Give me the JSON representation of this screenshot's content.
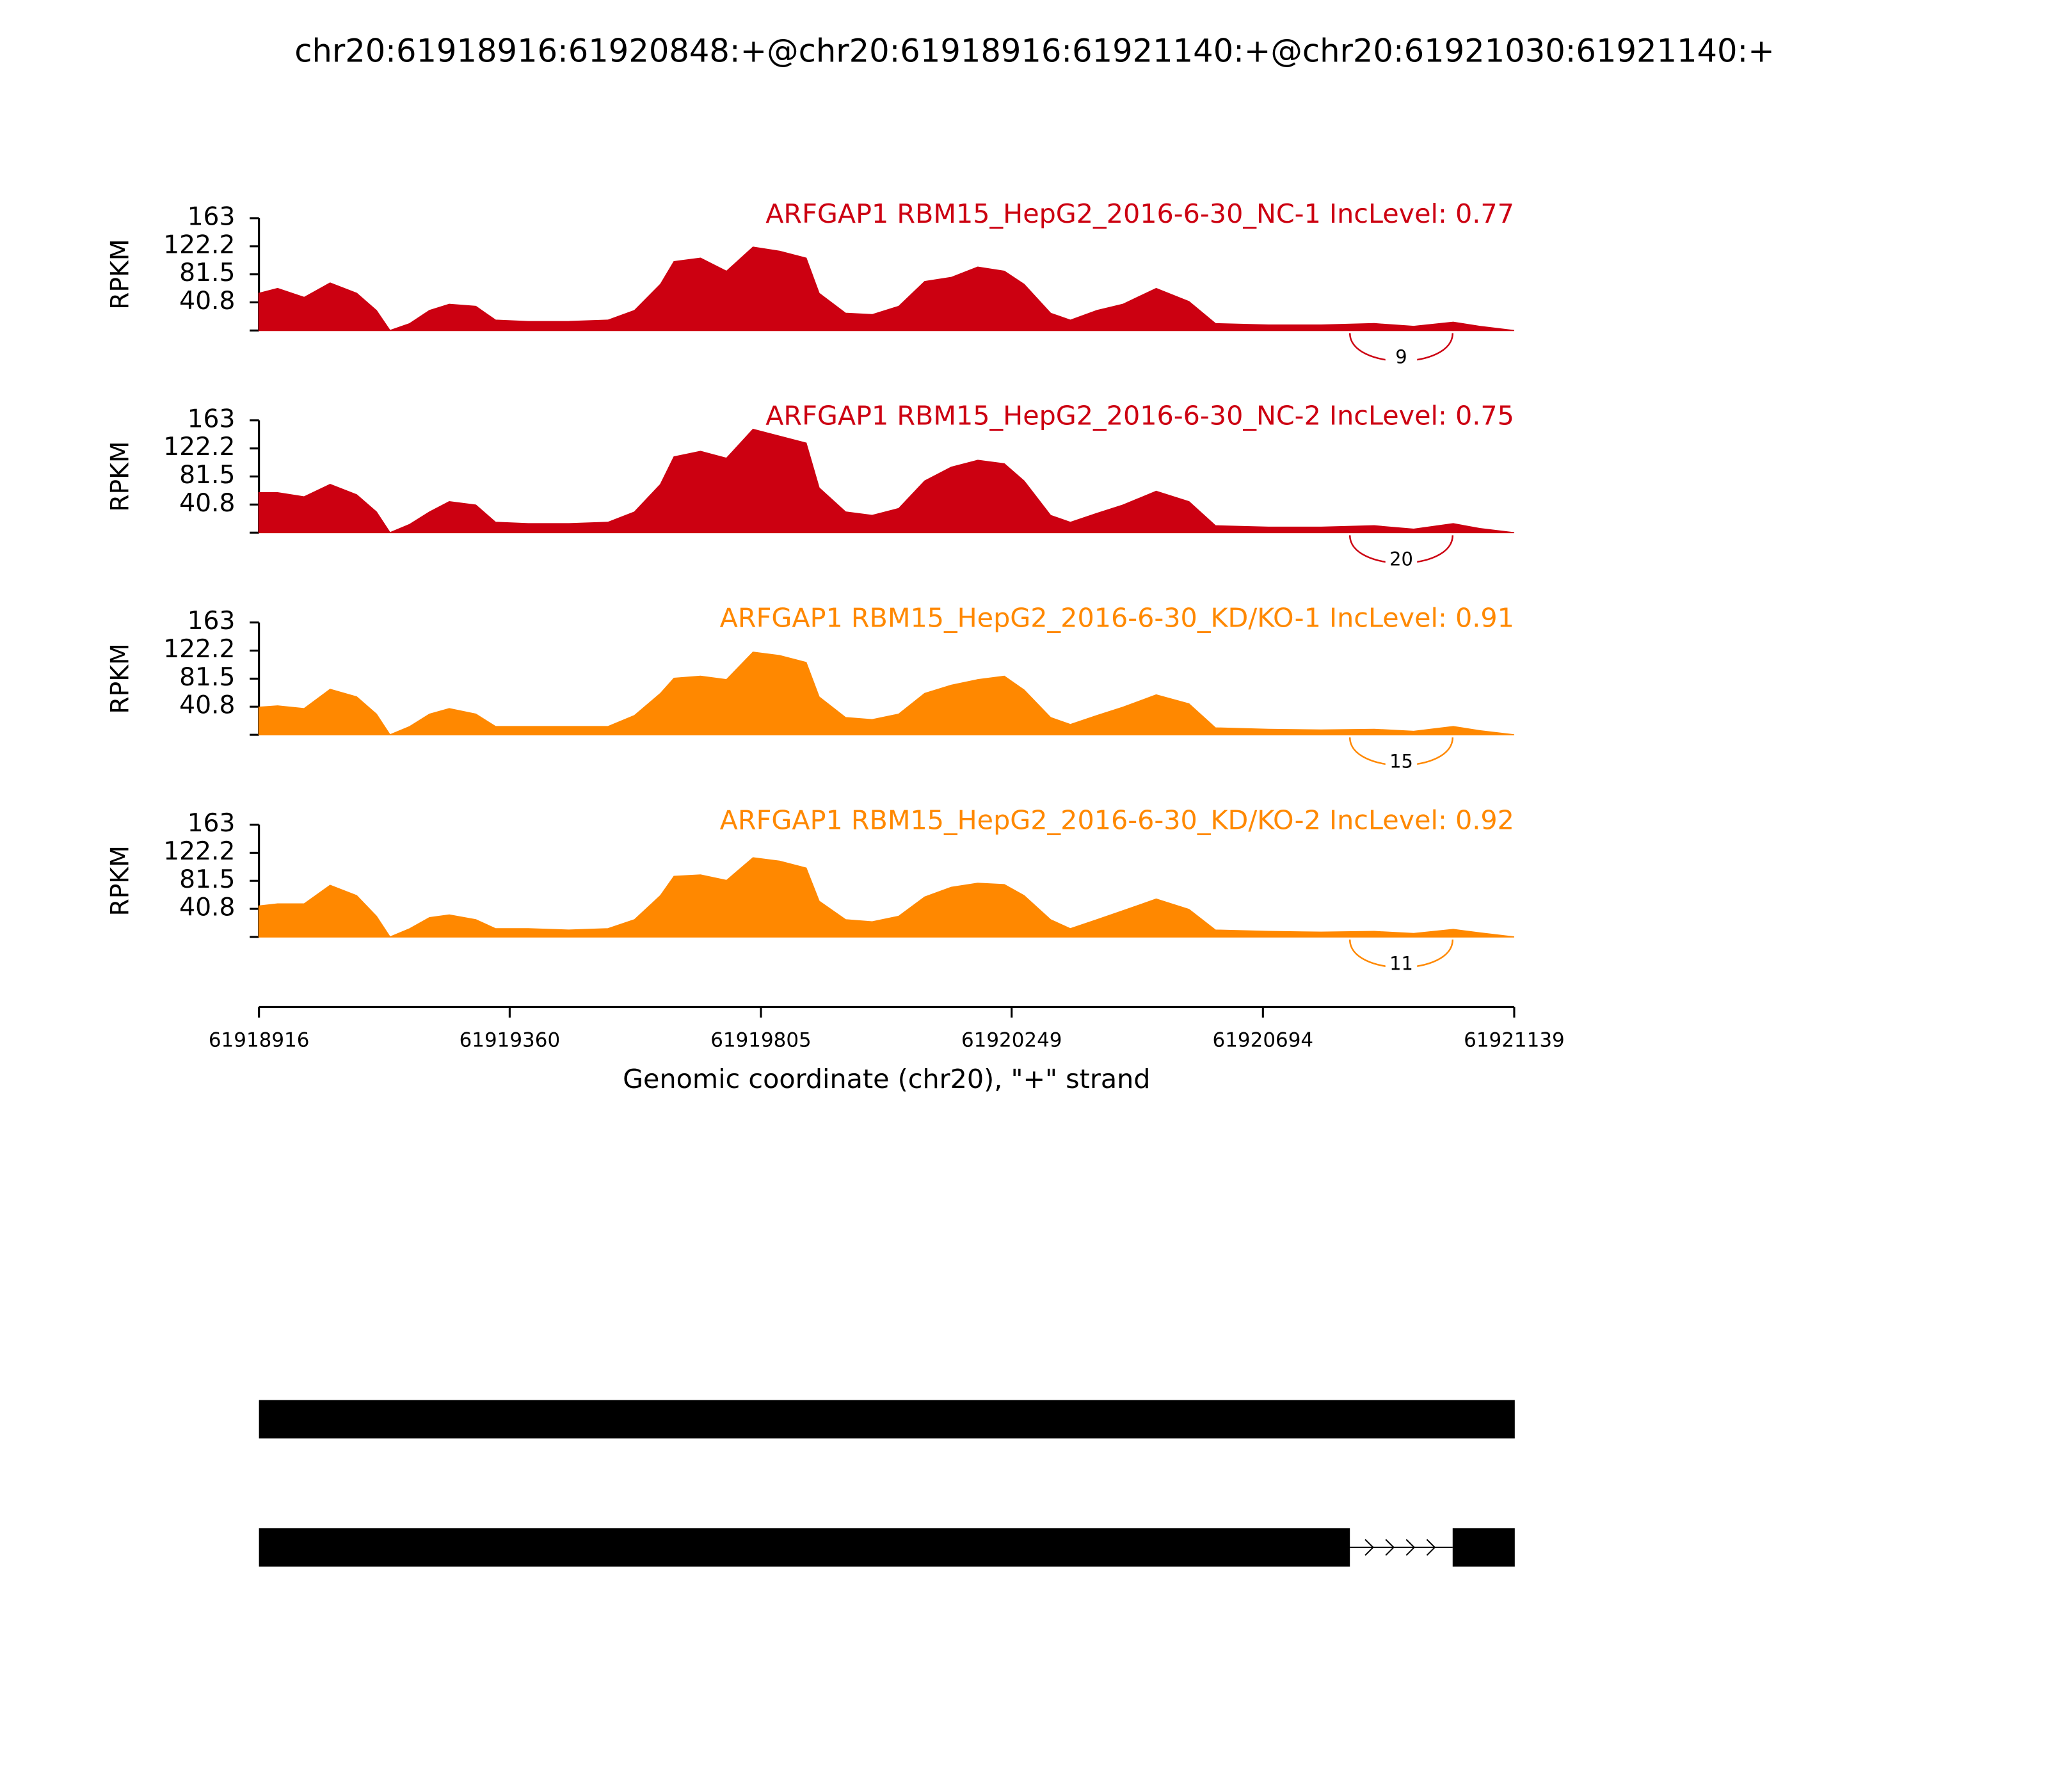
{
  "title": "chr20:61918916:61920848:+@chr20:61918916:61921140:+@chr20:61921030:61921140:+",
  "x_axis": {
    "xlim": [
      61918916,
      61921139
    ],
    "xticks": [
      61918916,
      61919360,
      61919805,
      61920249,
      61920694,
      61921139
    ],
    "label": "Genomic coordinate (chr20), \"+\" strand"
  },
  "x": [
    61918916,
    61918949,
    61918996,
    61919042,
    61919089,
    61919124,
    61919148,
    61919183,
    61919218,
    61919253,
    61919300,
    61919335,
    61919393,
    61919464,
    61919534,
    61919581,
    61919627,
    61919651,
    61919698,
    61919744,
    61919791,
    61919838,
    61919885,
    61919908,
    61919955,
    61920002,
    61920049,
    61920095,
    61920142,
    61920189,
    61920236,
    61920271,
    61920318,
    61920353,
    61920400,
    61920446,
    61920505,
    61920563,
    61920610,
    61920704,
    61920797,
    61920891,
    61920961,
    61921031,
    61921078,
    61921139
  ],
  "chart_data": [
    {
      "type": "area",
      "title": "ARFGAP1 RBM15_HepG2_2016-6-30_NC-1 IncLevel: 0.77",
      "color": "#cc0011",
      "ylabel": "RPKM",
      "ylim": [
        0,
        163
      ],
      "yticks": [
        40.8,
        81.5,
        122.2,
        163
      ],
      "values": [
        54,
        61,
        48,
        69,
        54,
        29,
        0,
        10,
        29,
        38,
        35,
        15,
        13,
        13,
        15,
        29,
        67,
        100,
        105,
        86,
        121,
        115,
        105,
        54,
        25,
        23,
        35,
        71,
        77,
        92,
        86,
        67,
        25,
        15,
        29,
        38,
        61,
        42,
        10,
        8,
        8,
        10,
        6,
        12,
        6,
        0
      ],
      "junctions": [
        {
          "start": 61920848,
          "end": 61921030,
          "count": 9
        }
      ]
    },
    {
      "type": "area",
      "title": "ARFGAP1 RBM15_HepG2_2016-6-30_NC-2 IncLevel: 0.75",
      "color": "#cc0011",
      "ylabel": "RPKM",
      "ylim": [
        0,
        163
      ],
      "yticks": [
        40.8,
        81.5,
        122.2,
        163
      ],
      "values": [
        58,
        58,
        52,
        70,
        55,
        30,
        0,
        12,
        30,
        45,
        40,
        15,
        13,
        13,
        15,
        30,
        70,
        110,
        118,
        108,
        150,
        140,
        130,
        65,
        30,
        25,
        35,
        75,
        95,
        105,
        100,
        75,
        25,
        15,
        28,
        40,
        60,
        45,
        10,
        8,
        8,
        10,
        5,
        13,
        6,
        0
      ],
      "junctions": [
        {
          "start": 61920848,
          "end": 61921030,
          "count": 20
        }
      ]
    },
    {
      "type": "area",
      "title": "ARFGAP1 RBM15_HepG2_2016-6-30_KD/KO-1 IncLevel: 0.91",
      "color": "#ff8800",
      "ylabel": "RPKM",
      "ylim": [
        0,
        163
      ],
      "yticks": [
        40.8,
        81.5,
        122.2,
        163
      ],
      "values": [
        40,
        42,
        38,
        66,
        55,
        30,
        0,
        12,
        30,
        38,
        30,
        12,
        12,
        12,
        12,
        28,
        60,
        82,
        85,
        80,
        120,
        115,
        105,
        55,
        25,
        22,
        30,
        60,
        72,
        80,
        85,
        65,
        25,
        15,
        28,
        40,
        58,
        45,
        10,
        8,
        7,
        8,
        5,
        12,
        6,
        0
      ],
      "junctions": [
        {
          "start": 61920848,
          "end": 61921030,
          "count": 15
        }
      ]
    },
    {
      "type": "area",
      "title": "ARFGAP1 RBM15_HepG2_2016-6-30_KD/KO-2 IncLevel: 0.92",
      "color": "#ff8800",
      "ylabel": "RPKM",
      "ylim": [
        0,
        163
      ],
      "yticks": [
        40.8,
        81.5,
        122.2,
        163
      ],
      "values": [
        45,
        48,
        48,
        75,
        60,
        30,
        0,
        12,
        28,
        32,
        25,
        12,
        12,
        10,
        12,
        25,
        60,
        88,
        90,
        82,
        115,
        110,
        100,
        52,
        25,
        22,
        30,
        58,
        72,
        78,
        76,
        60,
        25,
        12,
        25,
        38,
        55,
        40,
        10,
        8,
        7,
        8,
        5,
        11,
        6,
        0
      ],
      "junctions": [
        {
          "start": 61920848,
          "end": 61921030,
          "count": 11
        }
      ]
    }
  ],
  "isoforms": [
    {
      "exons": [
        [
          61918916,
          61921140
        ]
      ]
    },
    {
      "exons": [
        [
          61918916,
          61920848
        ],
        [
          61921030,
          61921140
        ]
      ]
    }
  ]
}
